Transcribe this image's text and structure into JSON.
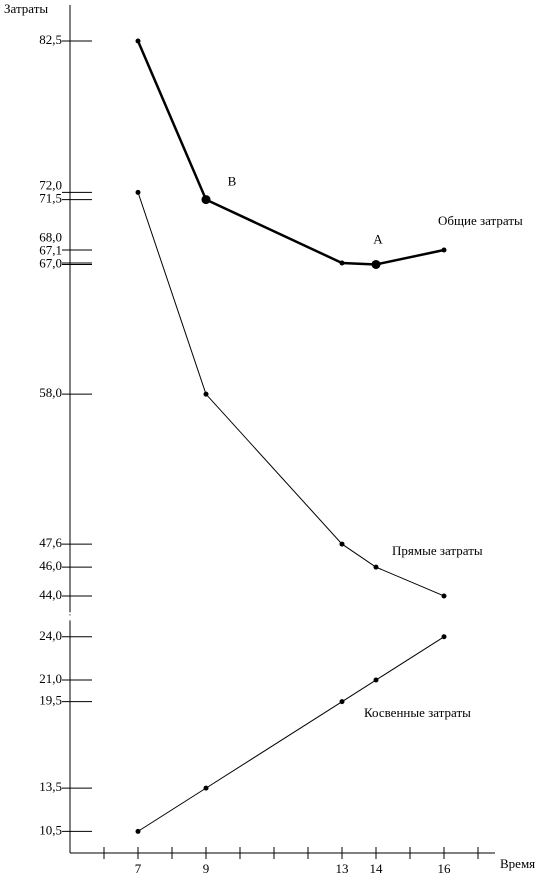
{
  "chart_data": {
    "type": "line",
    "y_label": "Затраты",
    "x_label": "Время",
    "x": [
      7,
      9,
      13,
      14,
      16
    ],
    "series": [
      {
        "name": "Общие затраты",
        "color": "#000000",
        "line_width": 2.5,
        "values": [
          82.5,
          71.5,
          67.1,
          67.0,
          68.0
        ]
      },
      {
        "name": "Прямые затраты",
        "color": "#000000",
        "line_width": 1,
        "values": [
          72.0,
          58.0,
          47.6,
          46.0,
          44.0
        ]
      },
      {
        "name": "Косвенные затраты",
        "color": "#000000",
        "line_width": 1,
        "values": [
          10.5,
          13.5,
          19.5,
          21.0,
          24.0
        ]
      }
    ],
    "annotations": [
      {
        "text": "B",
        "series": 0,
        "index": 1
      },
      {
        "text": "A",
        "series": 0,
        "index": 3
      }
    ],
    "xlim": [
      5,
      17.5
    ],
    "xticks": [
      7,
      9,
      13,
      14,
      16
    ],
    "x_minor_ticks": [
      6,
      8,
      10,
      11,
      12,
      15,
      17
    ],
    "ylim": [
      9,
      85
    ],
    "y_break": [
      25,
      43
    ],
    "yticks": [
      {
        "value": 82.5,
        "label": "82,5"
      },
      {
        "value": 72.0,
        "label": "72,0"
      },
      {
        "value": 71.5,
        "label": "71,5"
      },
      {
        "value": 68.0,
        "label": "68,0"
      },
      {
        "value": 67.1,
        "label": "67,1"
      },
      {
        "value": 67.0,
        "label": "67,0"
      },
      {
        "value": 58.0,
        "label": "58,0"
      },
      {
        "value": 47.6,
        "label": "47,6"
      },
      {
        "value": 46.0,
        "label": "46,0"
      },
      {
        "value": 44.0,
        "label": "44,0"
      },
      {
        "value": 24.0,
        "label": "24,0"
      },
      {
        "value": 21.0,
        "label": "21,0"
      },
      {
        "value": 19.5,
        "label": "19,5"
      },
      {
        "value": 13.5,
        "label": "13,5"
      },
      {
        "value": 10.5,
        "label": "10,5"
      }
    ],
    "grid": false
  }
}
